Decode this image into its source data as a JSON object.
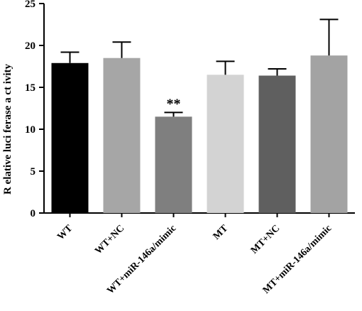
{
  "chart_data": {
    "type": "bar",
    "title": "",
    "xlabel": "",
    "ylabel": "R elative luci ferase a ct ivity",
    "ylim": [
      0,
      25
    ],
    "yticks": [
      0,
      5,
      10,
      15,
      20,
      25
    ],
    "categories": [
      "WT",
      "WT+NC",
      "WT+miR-146a/mimic",
      "MT",
      "MT+NC",
      "MT+miR-146a/mimic"
    ],
    "values": [
      17.9,
      18.5,
      11.5,
      16.5,
      16.4,
      18.8
    ],
    "errors": [
      1.3,
      1.9,
      0.5,
      1.6,
      0.8,
      4.3
    ],
    "colors": [
      "#000000",
      "#a6a6a6",
      "#7f7f7f",
      "#d3d3d3",
      "#5f5f5f",
      "#a3a3a3"
    ],
    "annotations": [
      "",
      "",
      "**",
      "",
      "",
      ""
    ],
    "grid": false,
    "legend": "none"
  }
}
